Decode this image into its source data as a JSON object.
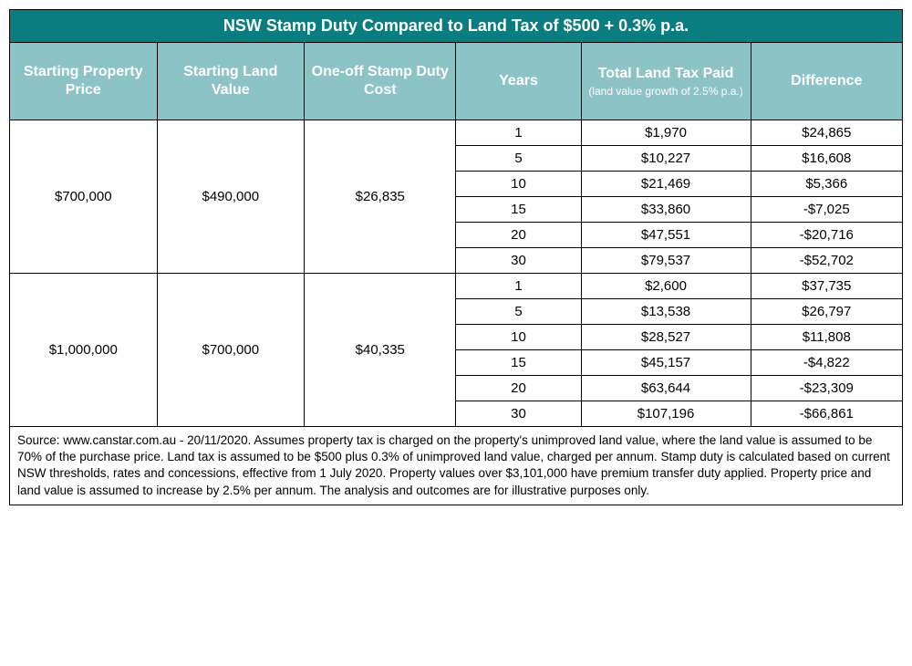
{
  "table": {
    "title": "NSW Stamp Duty Compared to Land Tax of $500 + 0.3% p.a.",
    "title_bg": "#0a7d81",
    "header_bg": "#8cc3c7",
    "border_color": "#000000",
    "columns": [
      {
        "label": "Starting Property Price"
      },
      {
        "label": "Starting Land Value"
      },
      {
        "label": "One-off Stamp Duty Cost"
      },
      {
        "label": "Years"
      },
      {
        "label": "Total Land Tax Paid",
        "sub": "(land value growth of 2.5% p.a.)"
      },
      {
        "label": "Difference"
      }
    ],
    "groups": [
      {
        "property_price": "$700,000",
        "land_value": "$490,000",
        "stamp_duty": "$26,835",
        "rows": [
          {
            "years": "1",
            "tax_paid": "$1,970",
            "difference": "$24,865"
          },
          {
            "years": "5",
            "tax_paid": "$10,227",
            "difference": "$16,608"
          },
          {
            "years": "10",
            "tax_paid": "$21,469",
            "difference": "$5,366"
          },
          {
            "years": "15",
            "tax_paid": "$33,860",
            "difference": "-$7,025"
          },
          {
            "years": "20",
            "tax_paid": "$47,551",
            "difference": "-$20,716"
          },
          {
            "years": "30",
            "tax_paid": "$79,537",
            "difference": "-$52,702"
          }
        ]
      },
      {
        "property_price": "$1,000,000",
        "land_value": "$700,000",
        "stamp_duty": "$40,335",
        "rows": [
          {
            "years": "1",
            "tax_paid": "$2,600",
            "difference": "$37,735"
          },
          {
            "years": "5",
            "tax_paid": "$13,538",
            "difference": "$26,797"
          },
          {
            "years": "10",
            "tax_paid": "$28,527",
            "difference": "$11,808"
          },
          {
            "years": "15",
            "tax_paid": "$45,157",
            "difference": "-$4,822"
          },
          {
            "years": "20",
            "tax_paid": "$63,644",
            "difference": "-$23,309"
          },
          {
            "years": "30",
            "tax_paid": "$107,196",
            "difference": "-$66,861"
          }
        ]
      }
    ],
    "source": "Source: www.canstar.com.au - 20/11/2020. Assumes property tax is charged on the property's unimproved land value, where the land value is assumed to be 70% of the purchase price. Land tax is assumed to be $500 plus 0.3% of unimproved land value, charged per annum. Stamp duty is calculated based on current NSW thresholds, rates and concessions, effective from 1 July 2020. Property values over $3,101,000 have premium transfer duty applied. Property price and land value is assumed to increase by 2.5% per annum. The analysis and outcomes are for illustrative purposes only."
  }
}
